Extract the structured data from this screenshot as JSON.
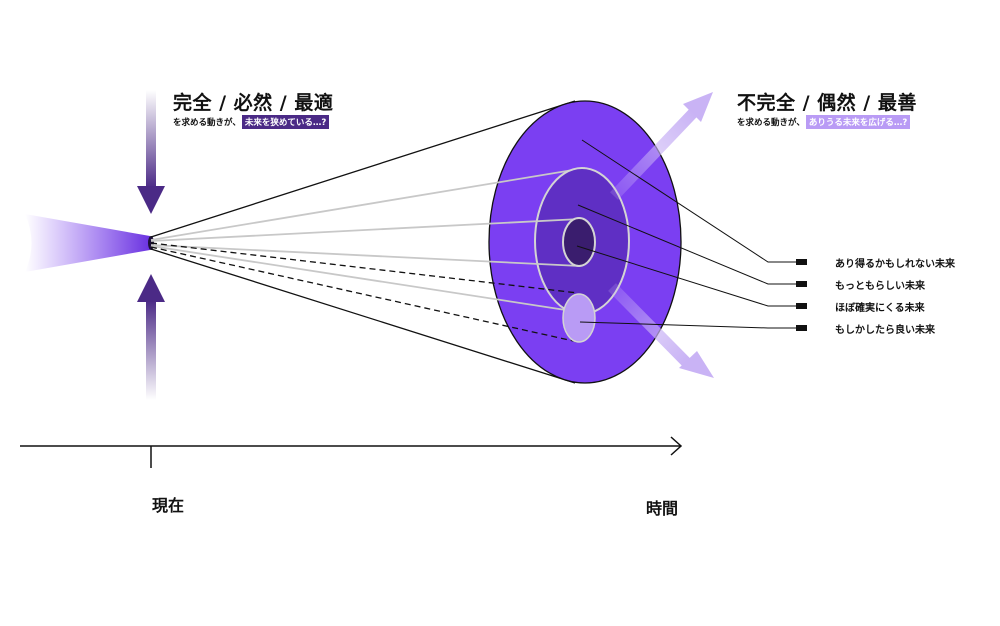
{
  "left_block": {
    "heading": "完全 / 必然 / 最適",
    "sub_prefix": "を求める動きが、",
    "sub_highlight": "未来を狭めている…?"
  },
  "right_block": {
    "heading": "不完全 / 偶然 / 最善",
    "sub_prefix": "を求める動きが、",
    "sub_highlight": "ありうる未来を広げる…?"
  },
  "legend": [
    "あり得るかもしれない未来",
    "もっともらしい未来",
    "ほぼ確実にくる未来",
    "もしかしたら良い未来"
  ],
  "axis": {
    "present_label": "現在",
    "time_label": "時間"
  },
  "colors": {
    "cone_outer": "#7b3ff2",
    "ring_middle": "#5f2fc4",
    "core_inner": "#3a1d6e",
    "good_future": "#b99bf5",
    "arrow_dark": "#4b2a86",
    "arrow_light": "#c9b3f5"
  }
}
